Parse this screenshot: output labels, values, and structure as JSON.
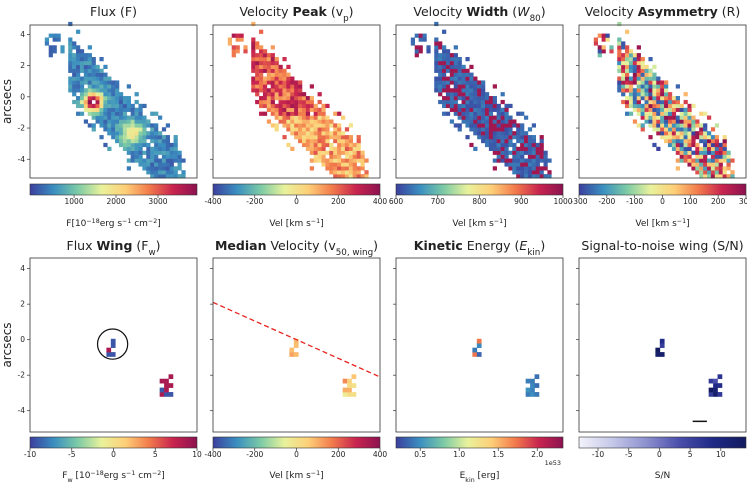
{
  "y_axis": {
    "label": "arcsecs",
    "ylim": [
      -5.2,
      4.6
    ],
    "yticks": [
      -4,
      -2,
      0,
      2,
      4
    ]
  },
  "panels": [
    {
      "title": [
        {
          "text": "Flux (F)",
          "style": "normal"
        }
      ],
      "colorbar": {
        "label": [
          {
            "text": "F[10",
            "style": "normal"
          },
          {
            "text": "−18",
            "style": "sup"
          },
          {
            "text": "erg s",
            "style": "normal"
          },
          {
            "text": "−1",
            "style": "sup"
          },
          {
            "text": " cm",
            "style": "normal"
          },
          {
            "text": "−2",
            "style": "sup"
          },
          {
            "text": "]",
            "style": "normal"
          }
        ],
        "lim": [
          -50,
          3930
        ],
        "ticks": [
          1000,
          2000,
          3000
        ],
        "colormap": [
          "#3b3f9e",
          "#3a8fc0",
          "#7ccaa6",
          "#e9f29c",
          "#fdcf78",
          "#f27a4b",
          "#c8244f",
          "#8c1250"
        ]
      }
    },
    {
      "title": [
        {
          "text": "Velocity ",
          "style": "normal"
        },
        {
          "text": "Peak",
          "style": "bold"
        },
        {
          "text": " (v",
          "style": "normal"
        },
        {
          "text": "p",
          "style": "sub"
        },
        {
          "text": ")",
          "style": "normal"
        }
      ],
      "colorbar": {
        "label": [
          {
            "text": "Vel [km s",
            "style": "normal"
          },
          {
            "text": "−1",
            "style": "sup"
          },
          {
            "text": "]",
            "style": "normal"
          }
        ],
        "lim": [
          -400,
          400
        ],
        "ticks": [
          -400,
          -200,
          0,
          200,
          400
        ],
        "colormap": [
          "#3b3f9e",
          "#3a8fc0",
          "#7ccaa6",
          "#e9f29c",
          "#fdcf78",
          "#f27a4b",
          "#c8244f",
          "#8c1250"
        ]
      }
    },
    {
      "title": [
        {
          "text": "Velocity ",
          "style": "normal"
        },
        {
          "text": "Width",
          "style": "bold"
        },
        {
          "text": " (",
          "style": "normal"
        },
        {
          "text": "W",
          "style": "italic"
        },
        {
          "text": "80",
          "style": "sub"
        },
        {
          "text": ")",
          "style": "normal"
        }
      ],
      "colorbar": {
        "label": [
          {
            "text": "Vel [km s",
            "style": "normal"
          },
          {
            "text": "−1",
            "style": "sup"
          },
          {
            "text": "]",
            "style": "normal"
          }
        ],
        "lim": [
          600,
          1000
        ],
        "ticks": [
          600,
          700,
          800,
          900,
          1000
        ],
        "colormap": [
          "#3b3f9e",
          "#3a8fc0",
          "#7ccaa6",
          "#e9f29c",
          "#fdcf78",
          "#f27a4b",
          "#c8244f",
          "#8c1250"
        ]
      }
    },
    {
      "title": [
        {
          "text": "Velocity ",
          "style": "normal"
        },
        {
          "text": "Asymmetry",
          "style": "bold"
        },
        {
          "text": " (R)",
          "style": "normal"
        }
      ],
      "colorbar": {
        "label": [
          {
            "text": "Vel [km s",
            "style": "normal"
          },
          {
            "text": "−1",
            "style": "sup"
          },
          {
            "text": "]",
            "style": "normal"
          }
        ],
        "lim": [
          -300,
          300
        ],
        "ticks": [
          -300,
          -200,
          -100,
          0,
          100,
          200,
          300
        ],
        "colormap": [
          "#3b3f9e",
          "#3a8fc0",
          "#7ccaa6",
          "#e9f29c",
          "#fdcf78",
          "#f27a4b",
          "#c8244f",
          "#8c1250"
        ]
      }
    },
    {
      "title": [
        {
          "text": "Flux ",
          "style": "normal"
        },
        {
          "text": "Wing",
          "style": "bold"
        },
        {
          "text": " (F",
          "style": "normal"
        },
        {
          "text": "w",
          "style": "sub"
        },
        {
          "text": ")",
          "style": "normal"
        }
      ],
      "colorbar": {
        "label": [
          {
            "text": "F",
            "style": "normal"
          },
          {
            "text": "w",
            "style": "sub"
          },
          {
            "text": " [10",
            "style": "normal"
          },
          {
            "text": "−18",
            "style": "sup"
          },
          {
            "text": "erg s",
            "style": "normal"
          },
          {
            "text": "−1",
            "style": "sup"
          },
          {
            "text": " cm",
            "style": "normal"
          },
          {
            "text": "−2",
            "style": "sup"
          },
          {
            "text": "]",
            "style": "normal"
          }
        ],
        "lim": [
          -10,
          10
        ],
        "ticks": [
          -10,
          -5,
          0,
          5,
          10
        ],
        "colormap": [
          "#3b3f9e",
          "#3a8fc0",
          "#7ccaa6",
          "#e9f29c",
          "#fdcf78",
          "#f27a4b",
          "#c8244f",
          "#8c1250"
        ]
      }
    },
    {
      "title": [
        {
          "text": "Median",
          "style": "bold"
        },
        {
          "text": " Velocity (v",
          "style": "normal"
        },
        {
          "text": "50, wing",
          "style": "sub"
        },
        {
          "text": ")",
          "style": "normal"
        }
      ],
      "colorbar": {
        "label": [
          {
            "text": "Vel [km s",
            "style": "normal"
          },
          {
            "text": "−1",
            "style": "sup"
          },
          {
            "text": "]",
            "style": "normal"
          }
        ],
        "lim": [
          -400,
          400
        ],
        "ticks": [
          -400,
          -200,
          0,
          200,
          400
        ],
        "colormap": [
          "#3b3f9e",
          "#3a8fc0",
          "#7ccaa6",
          "#e9f29c",
          "#fdcf78",
          "#f27a4b",
          "#c8244f",
          "#8c1250"
        ]
      }
    },
    {
      "title": [
        {
          "text": "Kinetic",
          "style": "bold"
        },
        {
          "text": " Energy (",
          "style": "normal"
        },
        {
          "text": "E",
          "style": "italic"
        },
        {
          "text": "kin",
          "style": "sub"
        },
        {
          "text": ")",
          "style": "normal"
        }
      ],
      "colorbar": {
        "label": [
          {
            "text": "E",
            "style": "normal"
          },
          {
            "text": "kin",
            "style": "sub"
          },
          {
            "text": " [erg]",
            "style": "normal"
          }
        ],
        "lim": [
          0.19,
          2.33
        ],
        "ticks": [
          0.5,
          {
            "value": 1,
            "label": "1.0"
          },
          1.5,
          {
            "value": 2,
            "label": "2.0"
          }
        ],
        "offset": "1e53",
        "colormap": [
          "#3b3f9e",
          "#3a8fc0",
          "#7ccaa6",
          "#e9f29c",
          "#fdcf78",
          "#f27a4b",
          "#c8244f",
          "#8c1250"
        ]
      }
    },
    {
      "title": [
        {
          "text": "Signal-to-noise wing (S/N)",
          "style": "normal"
        }
      ],
      "colorbar": {
        "label": [
          {
            "text": "S/N",
            "style": "normal"
          }
        ],
        "lim": [
          -13.1,
          14.1
        ],
        "ticks": [
          -10,
          -5,
          0,
          5,
          10
        ],
        "colormap": [
          "#f3f3fb",
          "#c5c8e8",
          "#8d92cf",
          "#4a4fab",
          "#1f2a86",
          "#121b5e"
        ]
      }
    }
  ]
}
